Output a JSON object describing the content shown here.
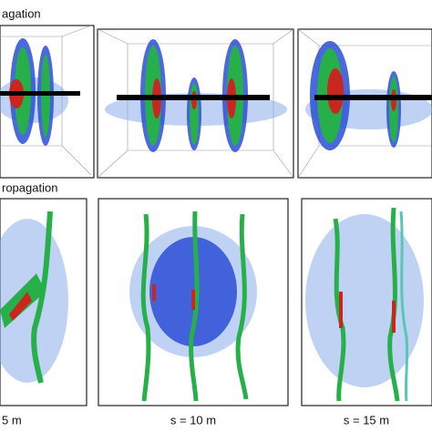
{
  "sections": [
    {
      "title": "agation"
    },
    {
      "title": "ropagation"
    }
  ],
  "labels": [
    "5 m",
    "s = 10 m",
    "s = 15 m"
  ]
}
